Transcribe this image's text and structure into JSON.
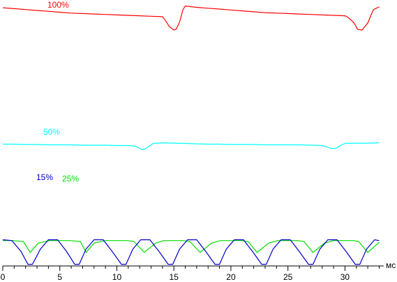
{
  "chart_data": {
    "type": "line",
    "title": "",
    "xlabel": "мс",
    "ylabel": "",
    "xlim": [
      0,
      33.4
    ],
    "x_ticks": [
      "0",
      "5",
      "10",
      "15",
      "20",
      "25",
      "30"
    ],
    "grid": false,
    "series": [
      {
        "name": "100%",
        "color": "#ff0000",
        "x": [
          0,
          1,
          2,
          3,
          4,
          5,
          6,
          7,
          8,
          9,
          10,
          11,
          12,
          13,
          14,
          14.2,
          14.6,
          15,
          15.2,
          15.5,
          15.8,
          16,
          17,
          18,
          19,
          20,
          21,
          22,
          23,
          24,
          25,
          26,
          27,
          28,
          29,
          30,
          30.3,
          30.8,
          31.1,
          31.5,
          32,
          32.5,
          33
        ],
        "values": [
          92,
          90,
          88,
          86,
          84,
          82,
          80,
          79,
          78,
          77,
          76,
          75,
          74,
          73,
          72,
          66,
          50,
          42,
          44,
          60,
          88,
          96,
          93,
          91,
          89,
          87,
          85,
          83,
          81,
          80,
          79,
          78,
          77,
          76,
          75,
          74,
          70,
          58,
          44,
          42,
          58,
          88,
          94
        ]
      },
      {
        "name": "50%",
        "color": "#00ffff",
        "x": [
          0,
          1,
          2,
          3,
          4,
          5,
          6,
          7,
          8,
          9,
          10,
          11,
          11.5,
          11.9,
          12.2,
          12.5,
          12.8,
          13.2,
          14,
          15,
          16,
          17,
          18,
          19,
          20,
          21,
          22,
          23,
          24,
          25,
          26,
          27,
          28,
          28.4,
          28.8,
          29.2,
          29.6,
          30,
          31,
          32,
          33
        ],
        "values": [
          52,
          52,
          51,
          51,
          50,
          50,
          50,
          49,
          49,
          49,
          48,
          48,
          47,
          42,
          36,
          38,
          46,
          54,
          56,
          55,
          54,
          53,
          52,
          52,
          51,
          51,
          51,
          50,
          50,
          50,
          50,
          49,
          48,
          44,
          39,
          40,
          48,
          54,
          55,
          55,
          56
        ]
      },
      {
        "name": "25%",
        "color": "#00dd00",
        "x": [
          0,
          0.9,
          1.8,
          2.4,
          3.1,
          4.1,
          5.0,
          5.9,
          6.8,
          7.3,
          8.0,
          9.0,
          10.0,
          10.9,
          11.5,
          12.4,
          13.4,
          14.1,
          14.9,
          15.8,
          16.4,
          17.3,
          18.3,
          19.1,
          20.0,
          20.9,
          21.5,
          22.3,
          23.3,
          24.1,
          24.8,
          25.8,
          26.4,
          27.2,
          28.2,
          29.0,
          29.8,
          30.7,
          31.2,
          32.0,
          33.0
        ],
        "values": [
          30,
          30,
          29,
          16,
          27,
          30,
          30,
          30,
          29,
          16,
          27,
          30,
          30,
          30,
          29,
          16,
          27,
          30,
          30,
          30,
          29,
          16,
          27,
          30,
          30,
          30,
          29,
          16,
          27,
          30,
          30,
          30,
          29,
          16,
          27,
          30,
          30,
          30,
          29,
          16,
          28
        ]
      },
      {
        "name": "15%",
        "color": "#0000cc",
        "x": [
          0,
          0.8,
          1.6,
          2.2,
          2.6,
          3.3,
          4.0,
          4.8,
          5.6,
          6.3,
          6.7,
          7.3,
          8.0,
          8.8,
          9.6,
          10.4,
          10.8,
          11.4,
          12.1,
          12.9,
          13.7,
          14.5,
          14.9,
          15.5,
          16.2,
          17.0,
          17.8,
          18.6,
          19.0,
          19.6,
          20.3,
          21.1,
          21.9,
          22.7,
          23.1,
          23.7,
          24.4,
          25.2,
          26.0,
          26.8,
          27.2,
          27.8,
          28.5,
          29.3,
          30.1,
          30.9,
          31.3,
          31.9,
          32.6,
          33.0
        ],
        "values": [
          31,
          30,
          17,
          2,
          2,
          20,
          31,
          31,
          17,
          2,
          2,
          20,
          31,
          31,
          17,
          2,
          2,
          20,
          31,
          31,
          17,
          2,
          2,
          20,
          31,
          31,
          17,
          2,
          2,
          20,
          31,
          31,
          17,
          2,
          2,
          20,
          31,
          31,
          17,
          2,
          2,
          20,
          31,
          31,
          17,
          2,
          2,
          20,
          31,
          30
        ]
      }
    ]
  }
}
